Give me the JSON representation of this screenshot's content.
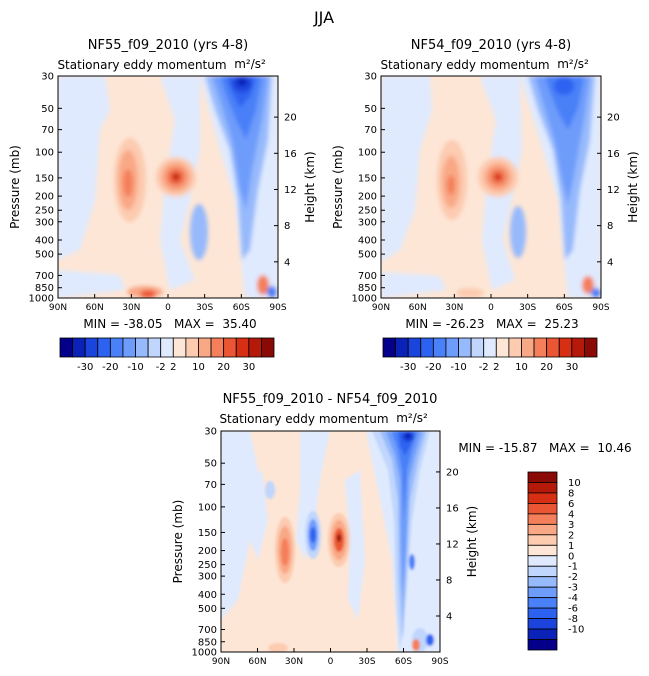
{
  "figure_title": "JJA",
  "colors": {
    "neg": [
      "#05008a",
      "#0a22b8",
      "#1a44dc",
      "#2d62f0",
      "#4a80f8",
      "#6e9cfb",
      "#97bafc",
      "#c0d6fd",
      "#dfeafe"
    ],
    "pos": [
      "#fde6d6",
      "#fccbb0",
      "#f9a886",
      "#f47f5a",
      "#ea5633",
      "#d62f14",
      "#b4190a",
      "#8a0a06"
    ],
    "top_cbar": [
      "#05008a",
      "#0a22b8",
      "#1a44dc",
      "#2d62f0",
      "#4a80f8",
      "#6e9cfb",
      "#97bafc",
      "#c0d6fd",
      "#dfeafe",
      "#fde6d6",
      "#fccbb0",
      "#f9a886",
      "#f47f5a",
      "#ea5633",
      "#d62f14",
      "#b4190a",
      "#8a0a06"
    ],
    "diff_cbar": [
      "#05008a",
      "#0a22b8",
      "#1a44dc",
      "#2d62f0",
      "#4a80f8",
      "#6e9cfb",
      "#97bafc",
      "#c0d6fd",
      "#dfeafe",
      "#fde6d6",
      "#fccbb0",
      "#f9a886",
      "#f47f5a",
      "#ea5633",
      "#d62f14",
      "#b4190a",
      "#8a0a06"
    ]
  },
  "chart_data": [
    {
      "type": "heatmap",
      "title": "NF55_f09_2010 (yrs 4-8)",
      "subtitle": "Stationary eddy momentum",
      "units": "m²/s²",
      "xlabel": "",
      "ylabel": "Pressure (mb)",
      "ylabel_right": "Height (km)",
      "x_ticks": [
        "90N",
        "60N",
        "30N",
        "0",
        "30S",
        "60S",
        "90S"
      ],
      "y_ticks": [
        "30",
        "50",
        "70",
        "100",
        "150",
        "200",
        "250",
        "300",
        "400",
        "500",
        "700",
        "850",
        "1000"
      ],
      "height_ticks": [
        "20",
        "16",
        "12",
        "8",
        "4"
      ],
      "min_label": "MIN = -38.05",
      "max_label": "MAX =  35.40",
      "cbar_labels": [
        "-30",
        "-20",
        "-10",
        "-2",
        "2",
        "10",
        "20",
        "30"
      ],
      "features": [
        {
          "lat": 0,
          "p": 150,
          "value": 35.4
        },
        {
          "lat": 25,
          "p": 170,
          "value": 10
        },
        {
          "lat": -65,
          "p": 35,
          "value": -38.05
        },
        {
          "lat": -55,
          "p": 150,
          "value": -12
        },
        {
          "lat": 25,
          "p": 1000,
          "value": 15
        }
      ]
    },
    {
      "type": "heatmap",
      "title": "NF54_f09_2010 (yrs 4-8)",
      "subtitle": "Stationary eddy momentum",
      "units": "m²/s²",
      "xlabel": "",
      "ylabel": "Pressure (mb)",
      "ylabel_right": "Height (km)",
      "x_ticks": [
        "90N",
        "60N",
        "30N",
        "0",
        "30S",
        "60S",
        "90S"
      ],
      "y_ticks": [
        "30",
        "50",
        "70",
        "100",
        "150",
        "200",
        "250",
        "300",
        "400",
        "500",
        "700",
        "850",
        "1000"
      ],
      "height_ticks": [
        "20",
        "16",
        "12",
        "8",
        "4"
      ],
      "min_label": "MIN = -26.23",
      "max_label": "MAX =  25.23",
      "cbar_labels": [
        "-30",
        "-20",
        "-10",
        "-2",
        "2",
        "10",
        "20",
        "30"
      ],
      "features": [
        {
          "lat": 0,
          "p": 150,
          "value": 25.23
        },
        {
          "lat": 25,
          "p": 170,
          "value": 8
        },
        {
          "lat": -65,
          "p": 40,
          "value": -26.23
        },
        {
          "lat": -55,
          "p": 150,
          "value": -10
        }
      ]
    },
    {
      "type": "heatmap",
      "title": "NF55_f09_2010 - NF54_f09_2010",
      "subtitle": "Stationary eddy momentum",
      "units": "m²/s²",
      "xlabel": "",
      "ylabel": "Pressure (mb)",
      "ylabel_right": "Height (km)",
      "x_ticks": [
        "90N",
        "60N",
        "30N",
        "0",
        "30S",
        "60S",
        "90S"
      ],
      "y_ticks": [
        "30",
        "50",
        "70",
        "100",
        "150",
        "200",
        "250",
        "300",
        "400",
        "500",
        "700",
        "850",
        "1000"
      ],
      "height_ticks": [
        "20",
        "16",
        "12",
        "8",
        "4"
      ],
      "min_label": "MIN = -15.87",
      "max_label": "MAX =  10.46",
      "cbar_labels": [
        "10",
        "8",
        "6",
        "4",
        "3",
        "2",
        "1",
        "0",
        "-1",
        "-2",
        "-3",
        "-4",
        "-6",
        "-8",
        "-10"
      ],
      "features": [
        {
          "lat": -10,
          "p": 150,
          "value": 10.46
        },
        {
          "lat": 30,
          "p": 170,
          "value": 6
        },
        {
          "lat": 12,
          "p": 150,
          "value": -5
        },
        {
          "lat": -65,
          "p": 35,
          "value": -15.87
        },
        {
          "lat": -60,
          "p": 200,
          "value": -6
        }
      ]
    }
  ]
}
